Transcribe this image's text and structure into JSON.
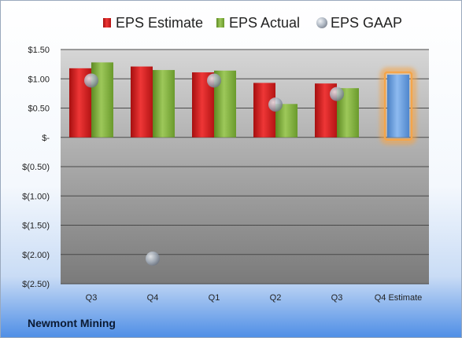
{
  "company": "Newmont Mining",
  "legend": [
    {
      "label": "EPS Estimate",
      "color": "#d42020",
      "marker": "square"
    },
    {
      "label": "EPS Actual",
      "color": "#7fae3a",
      "marker": "square"
    },
    {
      "label": "EPS GAAP",
      "color": "#a9b4c2",
      "marker": "circle"
    }
  ],
  "chart_data": {
    "type": "bar",
    "categories": [
      "Q3",
      "Q4",
      "Q1",
      "Q2",
      "Q3",
      "Q4 Estimate"
    ],
    "yticks": [
      "$1.50",
      "$1.00",
      "$0.50",
      "$-",
      "$(0.50)",
      "$(1.00)",
      "$(1.50)",
      "$(2.00)",
      "$(2.50)"
    ],
    "ylim": [
      -2.5,
      1.5
    ],
    "series": [
      {
        "name": "EPS Estimate",
        "type": "bar",
        "color": "#d42020",
        "values": [
          1.18,
          1.21,
          1.11,
          0.93,
          0.92,
          null
        ]
      },
      {
        "name": "EPS Actual",
        "type": "bar",
        "color": "#7fae3a",
        "values": [
          1.28,
          1.15,
          1.14,
          0.57,
          0.84,
          null
        ]
      },
      {
        "name": "EPS GAAP",
        "type": "scatter",
        "color": "#a9b4c2",
        "values": [
          0.97,
          -2.07,
          0.97,
          0.56,
          0.74,
          null
        ]
      },
      {
        "name": "Q4 Estimate",
        "type": "bar",
        "color": "#6fa3de",
        "highlight": "#f5a54a",
        "values": [
          null,
          null,
          null,
          null,
          null,
          1.07
        ]
      }
    ],
    "grid": true
  }
}
